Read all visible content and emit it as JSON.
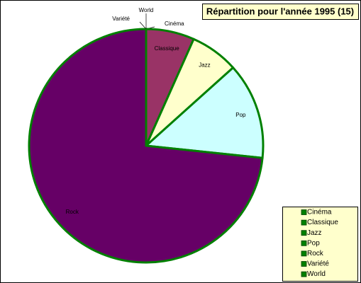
{
  "chart_data": {
    "type": "pie",
    "title": "Répartition pour l'année 1995 (15)",
    "categories": [
      "Cinéma",
      "Classique",
      "Jazz",
      "Pop",
      "Rock",
      "Variété",
      "World"
    ],
    "values": [
      0,
      1,
      1,
      2,
      11,
      0,
      0
    ],
    "colors": [
      "#ffffff",
      "#993366",
      "#ffffcc",
      "#ccffff",
      "#660066",
      "#ffffff",
      "#ffffff"
    ],
    "edge_color": "#008000",
    "legend": "bottom-right",
    "legend_marker_color": "#008000"
  }
}
